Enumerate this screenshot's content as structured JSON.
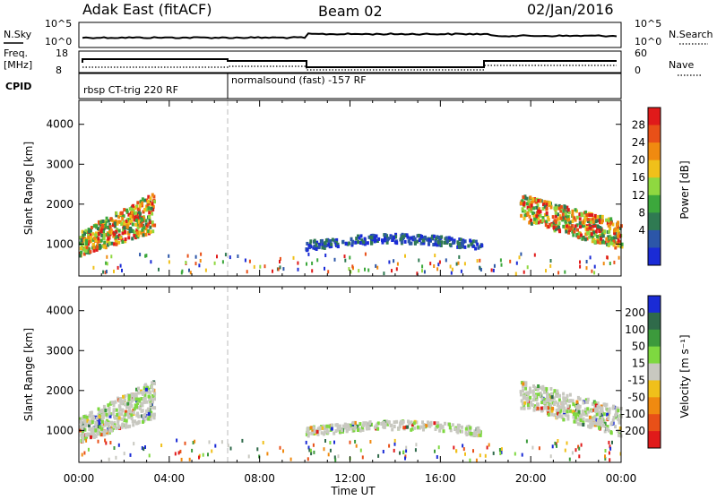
{
  "header": {
    "station": "Adak East (fitACF)",
    "beam": "Beam 02",
    "date": "02/Jan/2016"
  },
  "top_panel": {
    "left_label": "N.Sky",
    "left_ticks": [
      "10^5",
      "10^0"
    ],
    "right_label": "N.Search",
    "right_ticks": [
      "10^5",
      "10^0"
    ]
  },
  "freq_panel": {
    "left_label_1": "Freq.",
    "left_label_2": "[MHz]",
    "left_ticks": [
      "18",
      "8"
    ],
    "right_label": "Nave",
    "right_ticks": [
      "60",
      "0"
    ]
  },
  "cpid_panel": {
    "label": "CPID",
    "segment_1": "rbsp CT-trig 220 RF",
    "segment_2": "normalsound (fast) -157 RF"
  },
  "x_axis": {
    "label": "Time UT",
    "ticks": [
      "00:00",
      "04:00",
      "08:00",
      "12:00",
      "16:00",
      "20:00",
      "00:00"
    ]
  },
  "chart_data": [
    {
      "type": "heatmap",
      "panel": "power",
      "ylabel": "Slant Range [km]",
      "yticks": [
        "1000",
        "2000",
        "3000",
        "4000"
      ],
      "ylim": [
        200,
        4600
      ],
      "xlim_hours": [
        0,
        24
      ],
      "colorbar_label": "Power [dB]",
      "colorbar_ticks": [
        "4",
        "8",
        "12",
        "16",
        "20",
        "24",
        "28"
      ],
      "colorbar_colors": [
        "#1a2bd6",
        "#2c56a8",
        "#2f7a52",
        "#3ca83c",
        "#8fd840",
        "#f0c01a",
        "#f08a10",
        "#e85018",
        "#e01a1a"
      ],
      "echo_regions": [
        {
          "t0": 0.0,
          "t1": 3.3,
          "r0": 700,
          "r1": 2300,
          "intensity": "high"
        },
        {
          "t0": 10.0,
          "t1": 17.8,
          "r0": 750,
          "r1": 1250,
          "intensity": "low"
        },
        {
          "t0": 19.5,
          "t1": 24.0,
          "r0": 650,
          "r1": 2000,
          "intensity": "high"
        }
      ]
    },
    {
      "type": "heatmap",
      "panel": "velocity",
      "ylabel": "Slant Range [km]",
      "yticks": [
        "1000",
        "2000",
        "3000",
        "4000"
      ],
      "ylim": [
        200,
        4600
      ],
      "xlim_hours": [
        0,
        24
      ],
      "colorbar_label": "Velocity [m s⁻¹]",
      "colorbar_ticks": [
        "200",
        "100",
        "50",
        "15",
        "-15",
        "-50",
        "-100",
        "-200"
      ],
      "colorbar_colors": [
        "#1a2bd6",
        "#2f6a4a",
        "#3c9a3c",
        "#7ed840",
        "#c8c8c0",
        "#f0c01a",
        "#f08a10",
        "#e85018",
        "#e01a1a"
      ],
      "echo_regions": [
        {
          "t0": 0.0,
          "t1": 3.3,
          "r0": 700,
          "r1": 2300,
          "dominant": "ground-scatter"
        },
        {
          "t0": 10.0,
          "t1": 17.8,
          "r0": 750,
          "r1": 1250,
          "dominant": "low-velocity"
        },
        {
          "t0": 19.5,
          "t1": 24.0,
          "r0": 650,
          "r1": 2000,
          "dominant": "ground-scatter"
        }
      ]
    }
  ]
}
